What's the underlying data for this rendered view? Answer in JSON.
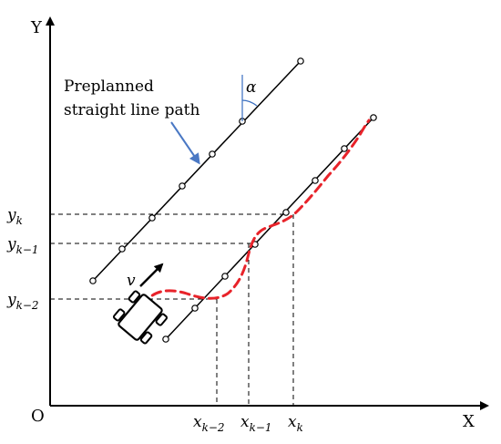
{
  "axes": {
    "x_label": "X",
    "y_label": "Y",
    "origin_label": "O"
  },
  "labels": {
    "path_label_line1": "Preplanned",
    "path_label_line2": "straight line path",
    "angle_symbol": "α",
    "velocity_symbol": "v"
  },
  "y_ticks": [
    {
      "main": "y",
      "sub": "k"
    },
    {
      "main": "y",
      "sub": "k−1"
    },
    {
      "main": "y",
      "sub": "k−2"
    }
  ],
  "x_ticks": [
    {
      "main": "x",
      "sub": "k−2"
    },
    {
      "main": "x",
      "sub": "k−1"
    },
    {
      "main": "x",
      "sub": "k"
    }
  ],
  "colors": {
    "axis": "#000000",
    "line": "#000000",
    "trajectory": "#e8232a",
    "arrow_blue": "#4a78c4",
    "guide": "#000000"
  }
}
